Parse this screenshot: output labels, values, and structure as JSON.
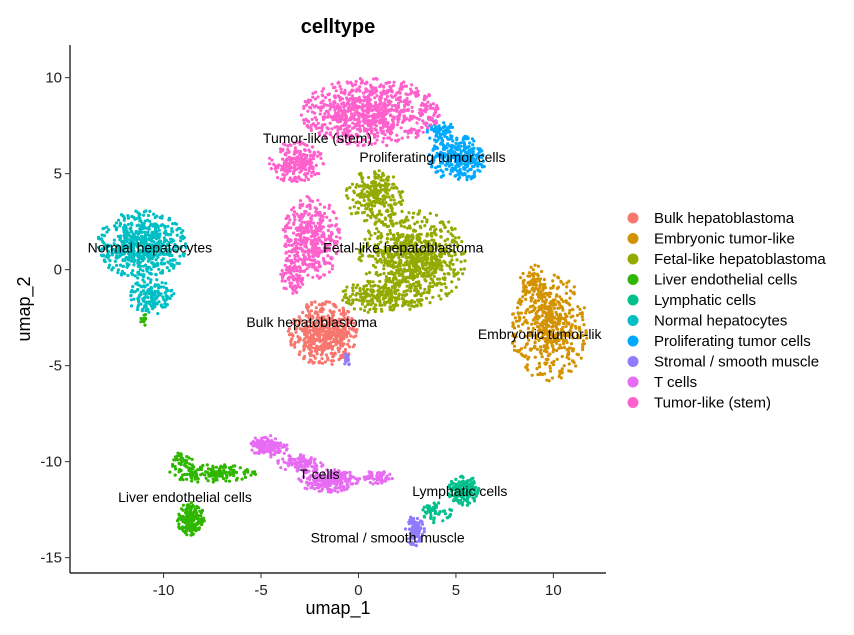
{
  "chart_data": {
    "type": "scatter",
    "title": "celltype",
    "xlabel": "umap_1",
    "ylabel": "umap_2",
    "xlim": [
      -14.8,
      12.7
    ],
    "ylim": [
      -15.8,
      11.7
    ],
    "xticks": [
      -10,
      -5,
      0,
      5,
      10
    ],
    "yticks": [
      -15,
      -10,
      -5,
      0,
      5,
      10
    ],
    "grid": false,
    "legend_position": "right",
    "series": [
      {
        "name": "Bulk hepatoblastoma",
        "color": "#F8766D",
        "clusters": [
          {
            "cx": -1.8,
            "cy": -3.3,
            "rx": 1.8,
            "ry": 1.7,
            "n": 520
          }
        ],
        "label": {
          "text": "Bulk hepatoblastoma",
          "x": -2.4,
          "y": -3.0
        }
      },
      {
        "name": "Embryonic tumor-like",
        "color": "#D39200",
        "clusters": [
          {
            "cx": 9.8,
            "cy": -3.0,
            "rx": 2.0,
            "ry": 2.8,
            "n": 520
          },
          {
            "cx": 9.0,
            "cy": -0.6,
            "rx": 0.7,
            "ry": 0.9,
            "n": 70
          }
        ],
        "label": {
          "text": "Embryonic tumor-lik",
          "x": 9.3,
          "y": -3.6
        }
      },
      {
        "name": "Fetal-like hepatoblastoma",
        "color": "#93AA00",
        "clusters": [
          {
            "cx": 2.8,
            "cy": 0.6,
            "rx": 2.8,
            "ry": 2.5,
            "n": 800
          },
          {
            "cx": 0.8,
            "cy": 3.8,
            "rx": 1.5,
            "ry": 1.4,
            "n": 240
          },
          {
            "cx": 1.2,
            "cy": -1.4,
            "rx": 2.2,
            "ry": 0.9,
            "n": 220
          }
        ],
        "label": {
          "text": "Fetal-like hepatoblastoma",
          "x": 2.3,
          "y": 0.9
        }
      },
      {
        "name": "Liver endothelial cells",
        "color": "#2FB600",
        "clusters": [
          {
            "cx": -8.6,
            "cy": -13.0,
            "rx": 0.7,
            "ry": 0.9,
            "n": 180
          },
          {
            "cx": -7.5,
            "cy": -10.6,
            "rx": 2.3,
            "ry": 0.5,
            "n": 160
          },
          {
            "cx": -9.0,
            "cy": -10.0,
            "rx": 0.6,
            "ry": 0.6,
            "n": 40
          },
          {
            "cx": -11.0,
            "cy": -2.6,
            "rx": 0.2,
            "ry": 0.3,
            "n": 12
          }
        ],
        "label": {
          "text": "Liver endothelial cells",
          "x": -8.9,
          "y": -12.1
        }
      },
      {
        "name": "Lymphatic cells",
        "color": "#00C08B",
        "clusters": [
          {
            "cx": 5.4,
            "cy": -11.5,
            "rx": 0.8,
            "ry": 0.8,
            "n": 160
          },
          {
            "cx": 4.0,
            "cy": -12.6,
            "rx": 0.8,
            "ry": 0.6,
            "n": 50
          }
        ],
        "label": {
          "text": "Lymphatic cells",
          "x": 5.2,
          "y": -11.8
        }
      },
      {
        "name": "Normal hepatocytes",
        "color": "#00BFC4",
        "clusters": [
          {
            "cx": -11.1,
            "cy": 1.3,
            "rx": 2.3,
            "ry": 1.8,
            "n": 620
          },
          {
            "cx": -10.6,
            "cy": -1.4,
            "rx": 1.2,
            "ry": 1.0,
            "n": 160
          }
        ],
        "label": {
          "text": "Normal hepatocytes",
          "x": -10.7,
          "y": 0.9
        }
      },
      {
        "name": "Proliferating tumor cells",
        "color": "#00A9FF",
        "clusters": [
          {
            "cx": 5.1,
            "cy": 5.8,
            "rx": 1.5,
            "ry": 1.2,
            "n": 300
          },
          {
            "cx": 4.2,
            "cy": 7.2,
            "rx": 0.7,
            "ry": 0.6,
            "n": 70
          }
        ],
        "label": {
          "text": "Proliferating tumor cells",
          "x": 3.8,
          "y": 5.6
        }
      },
      {
        "name": "Stromal / smooth muscle",
        "color": "#8F7CFF",
        "clusters": [
          {
            "cx": 2.9,
            "cy": -13.6,
            "rx": 0.5,
            "ry": 0.8,
            "n": 110
          },
          {
            "cx": -0.6,
            "cy": -4.6,
            "rx": 0.2,
            "ry": 0.4,
            "n": 20
          }
        ],
        "label": {
          "text": "Stromal / smooth muscle",
          "x": 1.5,
          "y": -14.2
        }
      },
      {
        "name": "T cells",
        "color": "#E76BF3",
        "clusters": [
          {
            "cx": -4.6,
            "cy": -9.2,
            "rx": 1.0,
            "ry": 0.6,
            "n": 140
          },
          {
            "cx": -1.5,
            "cy": -11.0,
            "rx": 1.6,
            "ry": 0.6,
            "n": 220
          },
          {
            "cx": -3.0,
            "cy": -10.1,
            "rx": 1.2,
            "ry": 0.5,
            "n": 100
          },
          {
            "cx": 1.0,
            "cy": -10.8,
            "rx": 0.8,
            "ry": 0.4,
            "n": 60
          }
        ],
        "label": {
          "text": "T cells",
          "x": -2.0,
          "y": -10.9
        }
      },
      {
        "name": "Tumor-like (stem)",
        "color": "#FF61CC",
        "clusters": [
          {
            "cx": 0.6,
            "cy": 8.2,
            "rx": 3.6,
            "ry": 1.8,
            "n": 900
          },
          {
            "cx": -3.2,
            "cy": 5.6,
            "rx": 1.4,
            "ry": 1.1,
            "n": 220
          },
          {
            "cx": -2.4,
            "cy": 1.6,
            "rx": 1.5,
            "ry": 2.3,
            "n": 420
          },
          {
            "cx": -3.4,
            "cy": -0.4,
            "rx": 0.6,
            "ry": 1.0,
            "n": 80
          }
        ],
        "label": {
          "text": "Tumor-like (stem)",
          "x": -2.1,
          "y": 6.6
        }
      }
    ]
  }
}
